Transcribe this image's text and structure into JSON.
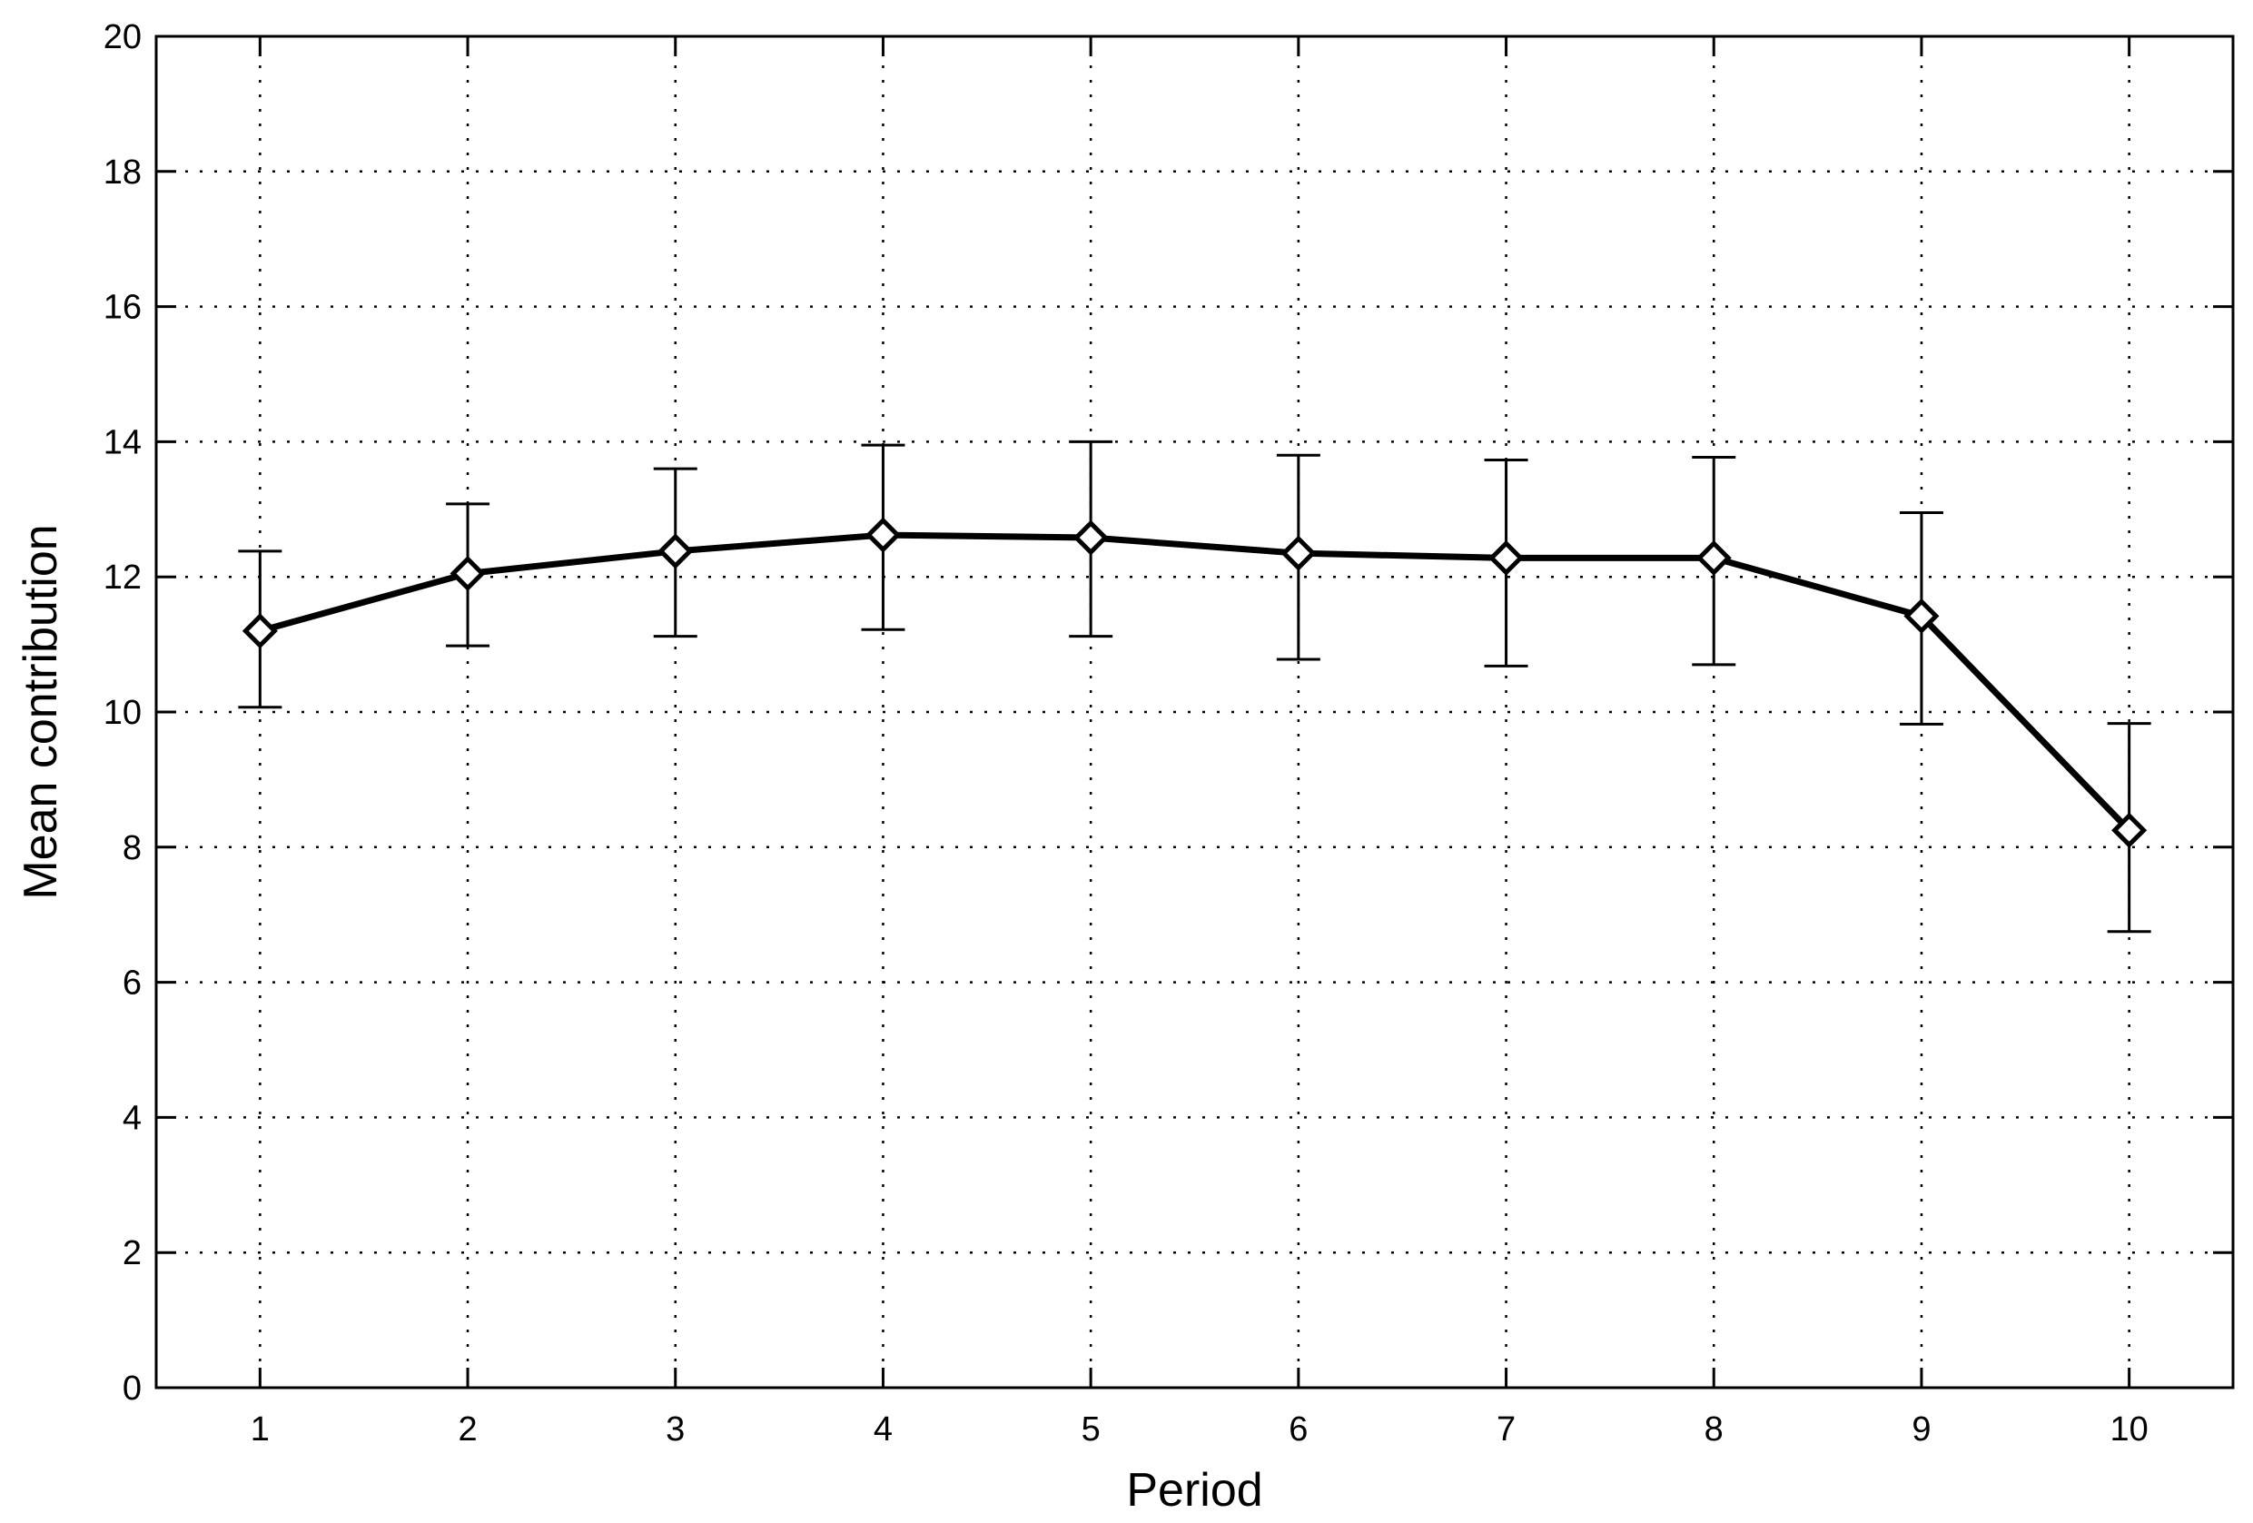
{
  "chart_data": {
    "type": "line",
    "title": "",
    "xlabel": "Period",
    "ylabel": "Mean contribution",
    "xlim": [
      0.5,
      10.5
    ],
    "ylim": [
      0,
      20
    ],
    "x_ticks": [
      1,
      2,
      3,
      4,
      5,
      6,
      7,
      8,
      9,
      10
    ],
    "y_ticks": [
      0,
      2,
      4,
      6,
      8,
      10,
      12,
      14,
      16,
      18,
      20
    ],
    "grid": true,
    "marker": "diamond",
    "series": [
      {
        "x": [
          1,
          2,
          3,
          4,
          5,
          6,
          7,
          8,
          9,
          10
        ],
        "values": [
          11.2,
          12.05,
          12.38,
          12.62,
          12.58,
          12.35,
          12.28,
          12.28,
          11.42,
          8.25
        ],
        "error_low": [
          10.07,
          10.98,
          11.12,
          11.22,
          11.12,
          10.78,
          10.68,
          10.7,
          9.82,
          6.75
        ],
        "error_high": [
          12.38,
          13.08,
          13.6,
          13.95,
          14.0,
          13.8,
          13.73,
          13.77,
          12.95,
          9.83
        ],
        "color": "#000000"
      }
    ]
  }
}
